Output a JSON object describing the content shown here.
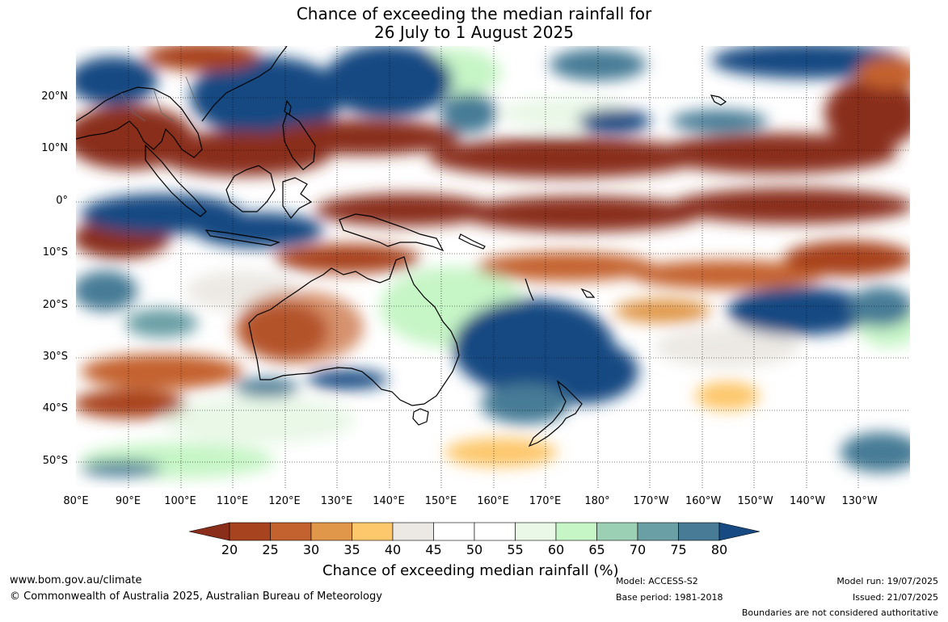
{
  "title_line1": "Chance of exceeding the median rainfall for",
  "title_line2": "26 July to 1 August 2025",
  "axes": {
    "lon_labels": [
      "80°E",
      "90°E",
      "100°E",
      "110°E",
      "120°E",
      "130°E",
      "140°E",
      "150°E",
      "160°E",
      "170°E",
      "180°",
      "170°W",
      "160°W",
      "150°W",
      "140°W",
      "130°W"
    ],
    "lat_labels": [
      "20°N",
      "10°N",
      "0°",
      "10°S",
      "20°S",
      "30°S",
      "40°S",
      "50°S"
    ]
  },
  "colorbar": {
    "label": "Chance of exceeding median rainfall (%)",
    "ticks": [
      "20",
      "25",
      "30",
      "35",
      "40",
      "45",
      "50",
      "55",
      "60",
      "65",
      "70",
      "75",
      "80"
    ],
    "colors": [
      "#8a2d1b",
      "#a8431f",
      "#c4622f",
      "#e0974a",
      "#fdc76c",
      "#ece9e4",
      "#ffffff",
      "#ffffff",
      "#e9f8e7",
      "#c6f5c6",
      "#9bd0b5",
      "#6b9fa6",
      "#477b96",
      "#174a82"
    ]
  },
  "footer": {
    "url": "www.bom.gov.au/climate",
    "copyright": "© Commonwealth of Australia 2025, Australian Bureau of Meteorology",
    "model": "Model: ACCESS-S2",
    "base_period": "Base period: 1981-2018",
    "model_run": "Model run: 19/07/2025",
    "issued": "Issued: 21/07/2025",
    "disclaimer": "Boundaries are not considered authoritative"
  }
}
